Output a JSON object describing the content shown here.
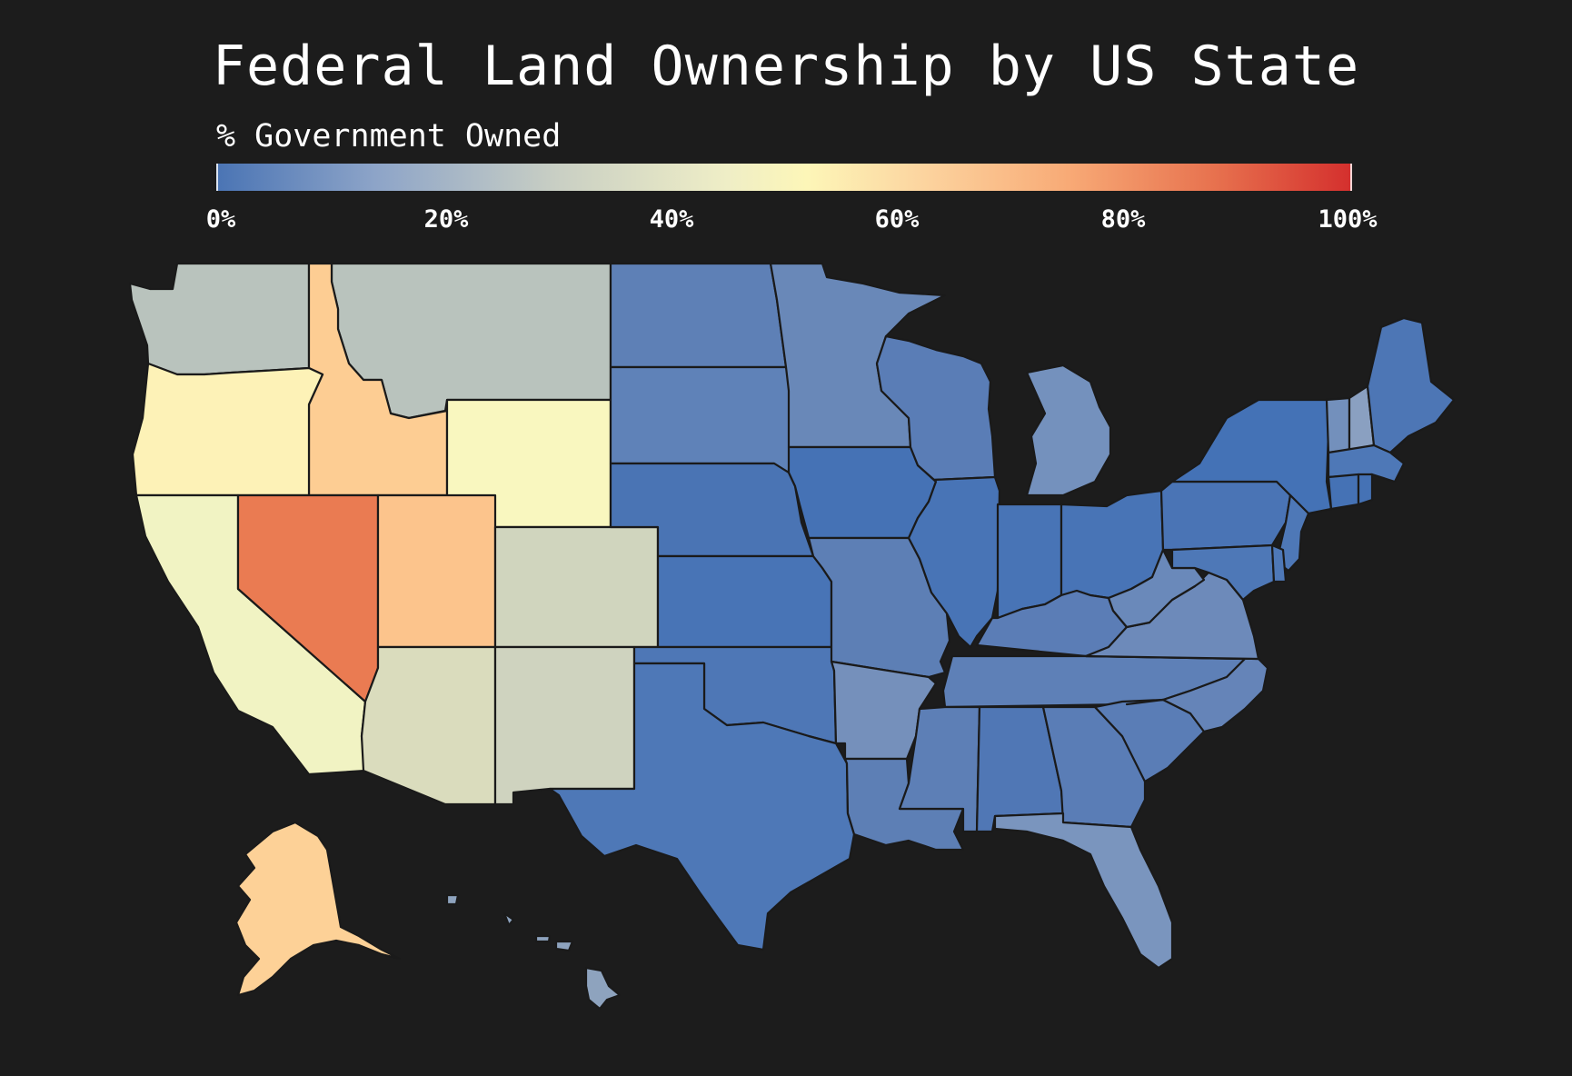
{
  "title": "Federal Land Ownership by US State",
  "legend": {
    "title": "% Government Owned",
    "ticks": [
      "0%",
      "20%",
      "40%",
      "60%",
      "80%",
      "100%"
    ],
    "colors": [
      "#4a74b4",
      "#c9cfc4",
      "#fdf6b8",
      "#f8aa76",
      "#d42f2d"
    ]
  },
  "map_data": {
    "metric": "% Government Owned",
    "range": [
      0,
      100
    ],
    "states": [
      {
        "id": "WA",
        "color": "#b9c3bd"
      },
      {
        "id": "MT",
        "color": "#b9c3bd"
      },
      {
        "id": "ID",
        "color": "#fdcd93"
      },
      {
        "id": "OR",
        "color": "#fdf2b7"
      },
      {
        "id": "WY",
        "color": "#f9f7bf"
      },
      {
        "id": "CA",
        "color": "#f1f3c3"
      },
      {
        "id": "NV",
        "color": "#ea7b52"
      },
      {
        "id": "UT",
        "color": "#fcc48c"
      },
      {
        "id": "CO",
        "color": "#d0d5be"
      },
      {
        "id": "AZ",
        "color": "#dadcbd"
      },
      {
        "id": "NM",
        "color": "#cfd3bf"
      },
      {
        "id": "ND",
        "color": "#5e80b6"
      },
      {
        "id": "SD",
        "color": "#5f82b8"
      },
      {
        "id": "NE",
        "color": "#4a74b4"
      },
      {
        "id": "KS",
        "color": "#4874b6"
      },
      {
        "id": "OK",
        "color": "#4e77b6"
      },
      {
        "id": "TX",
        "color": "#4e78b7"
      },
      {
        "id": "MN",
        "color": "#6988b8"
      },
      {
        "id": "IA",
        "color": "#4572b5"
      },
      {
        "id": "MO",
        "color": "#5d7fb5"
      },
      {
        "id": "AR",
        "color": "#7590bb"
      },
      {
        "id": "LA",
        "color": "#5d7fb5"
      },
      {
        "id": "WI",
        "color": "#5a7db6"
      },
      {
        "id": "IL",
        "color": "#4874b6"
      },
      {
        "id": "MI",
        "color": "#7491bd"
      },
      {
        "id": "IN",
        "color": "#4874b6"
      },
      {
        "id": "OH",
        "color": "#4874b6"
      },
      {
        "id": "KY",
        "color": "#5b7db6"
      },
      {
        "id": "TN",
        "color": "#5e80b7"
      },
      {
        "id": "MS",
        "color": "#5d7fb6"
      },
      {
        "id": "AL",
        "color": "#5077b5"
      },
      {
        "id": "GA",
        "color": "#5a7db6"
      },
      {
        "id": "FL",
        "color": "#7a95be"
      },
      {
        "id": "SC",
        "color": "#5a7db6"
      },
      {
        "id": "NC",
        "color": "#6584b8"
      },
      {
        "id": "VA",
        "color": "#6d8aba"
      },
      {
        "id": "WV",
        "color": "#6a89ba"
      },
      {
        "id": "PA",
        "color": "#4a74b5"
      },
      {
        "id": "NY",
        "color": "#4472b6"
      },
      {
        "id": "NJ",
        "color": "#4e78b7"
      },
      {
        "id": "MD",
        "color": "#4e78b7"
      },
      {
        "id": "DE",
        "color": "#4e78b7"
      },
      {
        "id": "VT",
        "color": "#7390bc"
      },
      {
        "id": "NH",
        "color": "#8aa0c1"
      },
      {
        "id": "ME",
        "color": "#4d76b5"
      },
      {
        "id": "MA",
        "color": "#4e78b7"
      },
      {
        "id": "CT",
        "color": "#4572b5"
      },
      {
        "id": "RI",
        "color": "#4572b5"
      },
      {
        "id": "AK",
        "color": "#fdd197"
      },
      {
        "id": "HI",
        "color": "#8ea3be"
      }
    ]
  }
}
